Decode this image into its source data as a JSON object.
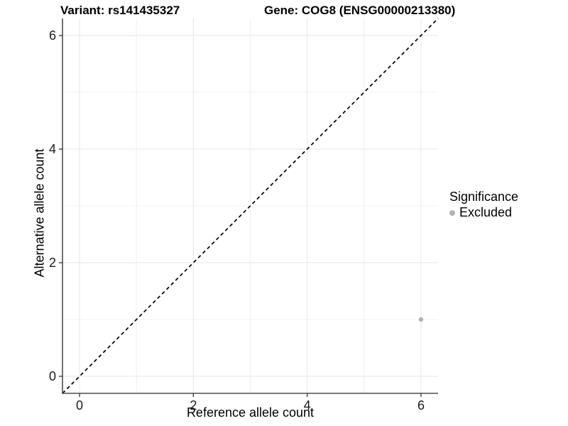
{
  "header": {
    "title_left": "Variant: rs141435327",
    "title_right": "Gene: COG8 (ENSG00000213380)"
  },
  "axes": {
    "x": {
      "label": "Reference allele count"
    },
    "y": {
      "label": "Alternative allele count"
    }
  },
  "legend": {
    "title": "Significance",
    "items": [
      {
        "label": "Excluded",
        "color": "#b3b3b3"
      }
    ]
  },
  "chart_data": {
    "type": "scatter",
    "title_left": "Variant: rs141435327",
    "title_right": "Gene: COG8 (ENSG00000213380)",
    "xlabel": "Reference allele count",
    "ylabel": "Alternative allele count",
    "xlim": [
      -0.3,
      6.3
    ],
    "ylim": [
      -0.3,
      6.3
    ],
    "x_ticks": [
      0,
      2,
      4,
      6
    ],
    "y_ticks": [
      0,
      2,
      4,
      6
    ],
    "x_minor_ticks": [
      1,
      3,
      5
    ],
    "y_minor_ticks": [
      1,
      3,
      5
    ],
    "grid": true,
    "legend_position": "right",
    "reference_line": {
      "type": "identity",
      "slope": 1,
      "intercept": 0,
      "style": "dashed",
      "color": "#000000"
    },
    "series": [
      {
        "name": "Excluded",
        "color": "#b3b3b3",
        "points": [
          {
            "x": 6,
            "y": 1
          }
        ]
      }
    ]
  },
  "colors": {
    "background": "#ffffff",
    "grid_major": "#e6e6e6",
    "grid_minor": "#f0f0f0",
    "axis_line": "#4d4d4d",
    "tick_mark": "#333333",
    "tick_text": "#1a1a1a",
    "dashed_line": "#000000",
    "point": "#b3b3b3"
  }
}
